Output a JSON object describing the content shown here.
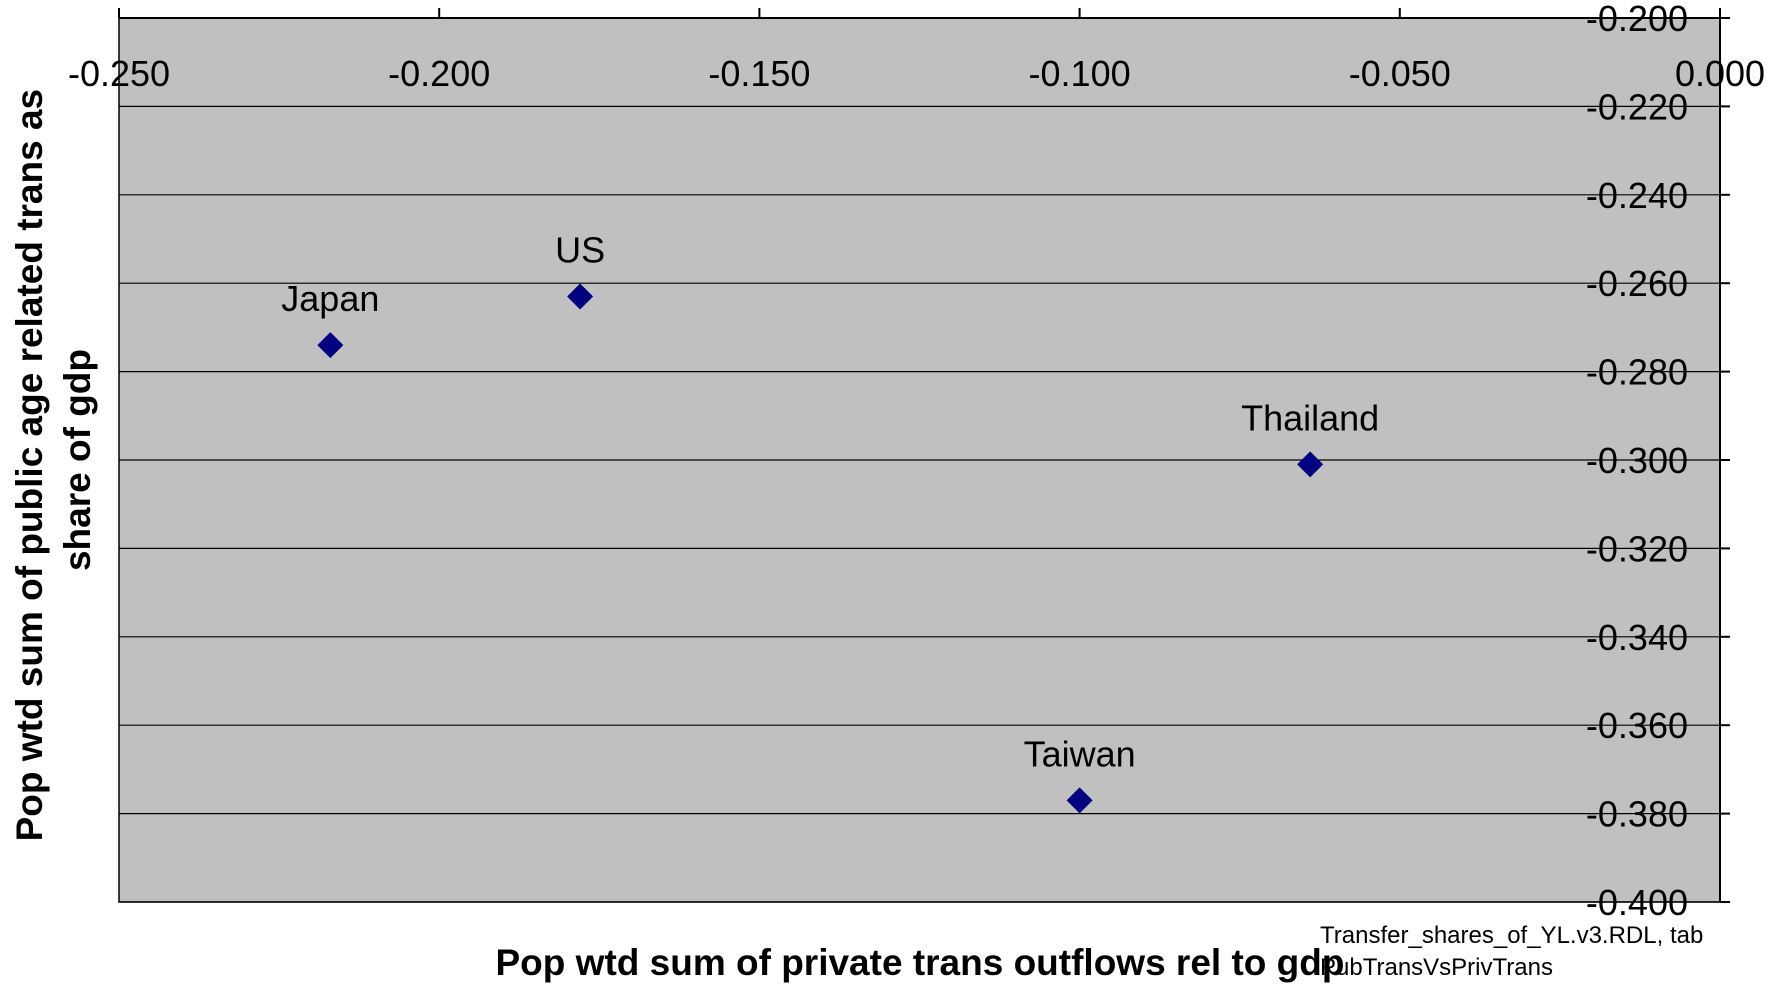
{
  "chart_data": {
    "type": "scatter",
    "title": "",
    "xlabel": "Pop wtd sum of private trans outflows rel to gdp",
    "ylabel": "Pop wtd sum of public age related trans as share of gdp",
    "ylabel_lines": [
      "Pop wtd sum of public age related trans as",
      "share of gdp"
    ],
    "xlim": [
      -0.25,
      0.0
    ],
    "ylim": [
      -0.4,
      -0.2
    ],
    "x_ticks": [
      -0.25,
      -0.2,
      -0.15,
      -0.1,
      -0.05,
      0.0
    ],
    "x_tick_labels": [
      "-0.250",
      "-0.200",
      "-0.150",
      "-0.100",
      "-0.050",
      "0.000"
    ],
    "y_ticks": [
      -0.2,
      -0.22,
      -0.24,
      -0.26,
      -0.28,
      -0.3,
      -0.32,
      -0.34,
      -0.36,
      -0.38,
      -0.4
    ],
    "y_tick_labels": [
      "-0.200",
      "-0.220",
      "-0.240",
      "-0.260",
      "-0.280",
      "-0.300",
      "-0.320",
      "-0.340",
      "-0.360",
      "-0.380",
      "-0.400"
    ],
    "grid": true,
    "plot_background": "#c0c0c0",
    "marker": "diamond",
    "marker_color": "#000080",
    "points": [
      {
        "label": "Japan",
        "x": -0.217,
        "y": -0.274
      },
      {
        "label": "US",
        "x": -0.178,
        "y": -0.263
      },
      {
        "label": "Thailand",
        "x": -0.064,
        "y": -0.301
      },
      {
        "label": "Taiwan",
        "x": -0.1,
        "y": -0.377
      }
    ]
  },
  "source_note": {
    "line1": "Transfer_shares_of_YL.v3.RDL, tab",
    "line2": "PubTransVsPrivTrans"
  }
}
